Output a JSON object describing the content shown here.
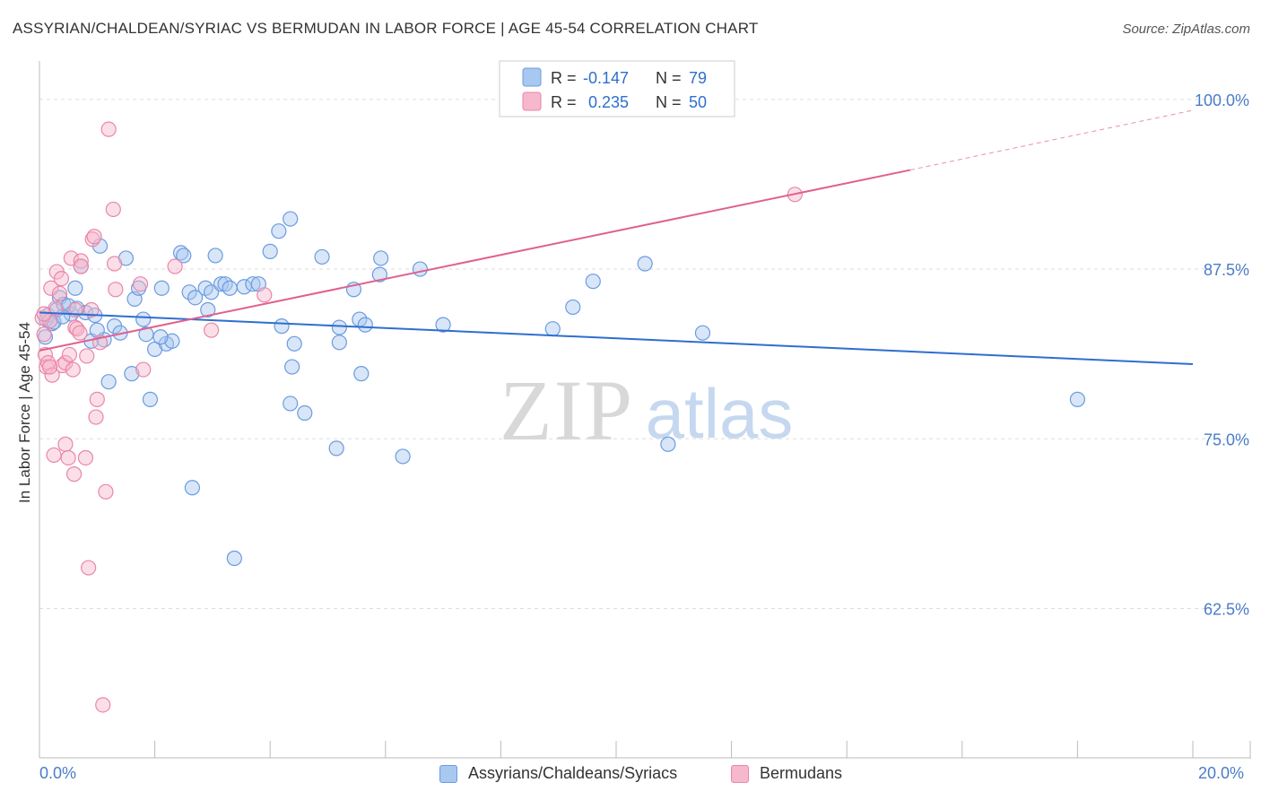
{
  "header": {
    "title": "ASSYRIAN/CHALDEAN/SYRIAC VS BERMUDAN IN LABOR FORCE | AGE 45-54 CORRELATION CHART",
    "source": "Source: ZipAtlas.com"
  },
  "watermark": {
    "zip": "ZIP",
    "atlas": "atlas"
  },
  "colors": {
    "blue_fill": "#a9c8f0",
    "blue_stroke": "#6b9be0",
    "blue_line": "#2d6fcf",
    "pink_fill": "#f6b8cc",
    "pink_stroke": "#ea86a8",
    "pink_line": "#e0608f",
    "axis_label": "#4a7cc9",
    "grid": "#dddddd"
  },
  "chart_data": {
    "type": "scatter",
    "title": "ASSYRIAN/CHALDEAN/SYRIAC VS BERMUDAN IN LABOR FORCE | AGE 45-54 CORRELATION CHART",
    "xlabel": "",
    "ylabel": "In Labor Force | Age 45-54",
    "xlim": [
      0,
      20
    ],
    "ylim": [
      51.5,
      102.5
    ],
    "x_tick_labels": [
      {
        "value": 0,
        "label": "0.0%"
      },
      {
        "value": 20,
        "label": "20.0%"
      }
    ],
    "y_tick_labels": [
      {
        "value": 100,
        "label": "100.0%"
      },
      {
        "value": 87.5,
        "label": "87.5%"
      },
      {
        "value": 75,
        "label": "75.0%"
      },
      {
        "value": 62.5,
        "label": "62.5%"
      }
    ],
    "legend": [
      {
        "series": "Assyrians/Chaldeans/Syriacs",
        "r_label": "R =",
        "r_value": "-0.147",
        "n_label": "N =",
        "n_value": "79"
      },
      {
        "series": "Bermudans",
        "r_label": "R =",
        "r_value": "0.235",
        "n_label": "N =",
        "n_value": "50"
      }
    ],
    "series": [
      {
        "name": "Assyrians/Chaldeans/Syriacs",
        "color": "#6b9be0",
        "trend": {
          "x0": 0,
          "y0": 84.3,
          "x1": 20,
          "y1": 80.5
        },
        "points": [
          [
            0.1,
            82.5
          ],
          [
            0.12,
            83.8
          ],
          [
            0.15,
            84.1
          ],
          [
            0.22,
            83.5
          ],
          [
            0.3,
            84.5
          ],
          [
            0.35,
            85.4
          ],
          [
            0.42,
            84.9
          ],
          [
            0.55,
            84.2
          ],
          [
            0.62,
            86.1
          ],
          [
            0.72,
            87.7
          ],
          [
            0.5,
            84.8
          ],
          [
            0.8,
            84.3
          ],
          [
            0.9,
            82.2
          ],
          [
            0.96,
            84.1
          ],
          [
            1.05,
            89.2
          ],
          [
            1.12,
            82.3
          ],
          [
            1.2,
            79.2
          ],
          [
            1.3,
            83.3
          ],
          [
            1.4,
            82.8
          ],
          [
            1.5,
            88.3
          ],
          [
            1.6,
            79.8
          ],
          [
            1.65,
            85.3
          ],
          [
            1.72,
            86.1
          ],
          [
            1.8,
            83.8
          ],
          [
            1.85,
            82.7
          ],
          [
            1.92,
            77.9
          ],
          [
            2.0,
            81.6
          ],
          [
            2.12,
            86.1
          ],
          [
            2.2,
            82.0
          ],
          [
            2.3,
            82.2
          ],
          [
            2.45,
            88.7
          ],
          [
            2.5,
            88.5
          ],
          [
            2.6,
            85.8
          ],
          [
            2.65,
            71.4
          ],
          [
            2.7,
            85.4
          ],
          [
            2.88,
            86.1
          ],
          [
            2.92,
            84.5
          ],
          [
            2.98,
            85.8
          ],
          [
            3.05,
            88.5
          ],
          [
            3.15,
            86.4
          ],
          [
            3.22,
            86.4
          ],
          [
            3.3,
            86.1
          ],
          [
            3.38,
            66.2
          ],
          [
            3.55,
            86.2
          ],
          [
            3.7,
            86.4
          ],
          [
            3.8,
            86.4
          ],
          [
            4.0,
            88.8
          ],
          [
            4.15,
            90.3
          ],
          [
            4.2,
            83.3
          ],
          [
            4.35,
            91.2
          ],
          [
            4.35,
            77.6
          ],
          [
            4.38,
            80.3
          ],
          [
            4.42,
            82.0
          ],
          [
            4.6,
            76.9
          ],
          [
            4.9,
            88.4
          ],
          [
            5.15,
            74.3
          ],
          [
            5.2,
            83.2
          ],
          [
            5.2,
            82.1
          ],
          [
            5.45,
            86.0
          ],
          [
            5.55,
            83.8
          ],
          [
            5.58,
            79.8
          ],
          [
            5.65,
            83.4
          ],
          [
            5.9,
            87.1
          ],
          [
            5.92,
            88.3
          ],
          [
            6.3,
            73.7
          ],
          [
            6.6,
            87.5
          ],
          [
            7.0,
            83.4
          ],
          [
            8.9,
            83.1
          ],
          [
            9.25,
            84.7
          ],
          [
            9.6,
            86.6
          ],
          [
            10.5,
            87.9
          ],
          [
            10.9,
            74.6
          ],
          [
            11.5,
            82.8
          ],
          [
            18.0,
            77.9
          ],
          [
            0.25,
            83.6
          ],
          [
            0.4,
            84.0
          ],
          [
            0.65,
            84.6
          ],
          [
            1.0,
            83.0
          ],
          [
            2.1,
            82.5
          ]
        ]
      },
      {
        "name": "Bermudans",
        "color": "#ea86a8",
        "trend": {
          "x0": 0,
          "y0": 81.5,
          "x1": 15.1,
          "y1": 94.8,
          "dash_to_x": 20,
          "dash_to_y": 99.2
        },
        "points": [
          [
            0.05,
            83.9
          ],
          [
            0.08,
            82.7
          ],
          [
            0.1,
            81.2
          ],
          [
            0.12,
            80.3
          ],
          [
            0.15,
            80.6
          ],
          [
            0.18,
            83.7
          ],
          [
            0.2,
            86.1
          ],
          [
            0.22,
            79.7
          ],
          [
            0.25,
            73.8
          ],
          [
            0.28,
            84.6
          ],
          [
            0.3,
            87.3
          ],
          [
            0.35,
            85.7
          ],
          [
            0.38,
            86.8
          ],
          [
            0.4,
            80.4
          ],
          [
            0.45,
            74.6
          ],
          [
            0.45,
            80.6
          ],
          [
            0.5,
            73.6
          ],
          [
            0.52,
            81.2
          ],
          [
            0.55,
            88.3
          ],
          [
            0.58,
            80.1
          ],
          [
            0.6,
            72.4
          ],
          [
            0.62,
            83.2
          ],
          [
            0.62,
            84.5
          ],
          [
            0.65,
            83.1
          ],
          [
            0.7,
            82.8
          ],
          [
            0.72,
            88.1
          ],
          [
            0.72,
            87.7
          ],
          [
            0.8,
            73.6
          ],
          [
            0.82,
            81.1
          ],
          [
            0.85,
            65.5
          ],
          [
            0.9,
            84.5
          ],
          [
            0.92,
            89.7
          ],
          [
            0.95,
            89.9
          ],
          [
            0.98,
            76.6
          ],
          [
            1.0,
            77.9
          ],
          [
            1.05,
            82.1
          ],
          [
            1.1,
            55.4
          ],
          [
            1.15,
            71.1
          ],
          [
            1.2,
            97.8
          ],
          [
            1.28,
            91.9
          ],
          [
            1.3,
            87.9
          ],
          [
            1.32,
            86.0
          ],
          [
            1.75,
            86.4
          ],
          [
            1.8,
            80.1
          ],
          [
            2.35,
            87.7
          ],
          [
            2.98,
            83.0
          ],
          [
            3.9,
            85.6
          ],
          [
            0.08,
            84.2
          ],
          [
            0.18,
            80.3
          ],
          [
            13.1,
            93.0
          ]
        ]
      }
    ]
  },
  "bottom_legend": [
    {
      "label": "Assyrians/Chaldeans/Syriacs"
    },
    {
      "label": "Bermudans"
    }
  ]
}
